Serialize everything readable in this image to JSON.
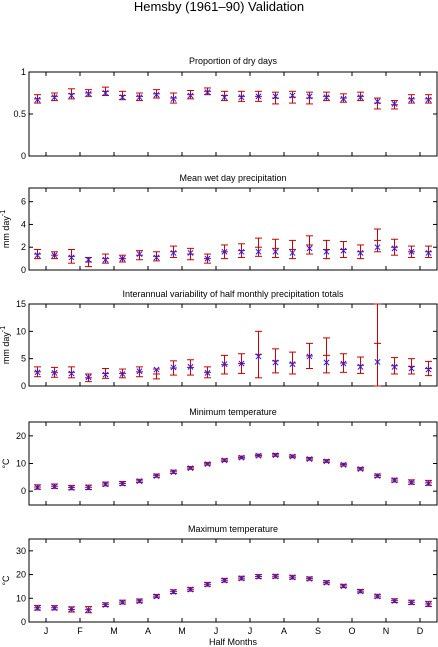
{
  "title": "Hemsby (1961–90) Validation",
  "x_axis": {
    "label": "Half Months",
    "ticks": [
      "J",
      "F",
      "M",
      "A",
      "M",
      "J",
      "J",
      "A",
      "S",
      "O",
      "N",
      "D"
    ]
  },
  "colors": {
    "observed": "#cc0000",
    "modelled": "#1a1aff",
    "axes": "#000000"
  },
  "legend": "none",
  "marker": "x",
  "chart_data": [
    {
      "type": "scatter",
      "title": "Proportion of dry days",
      "ylabel": "",
      "ylim": [
        0,
        1
      ],
      "yticks": [
        0,
        0.5,
        1
      ],
      "ytick_labels": [
        "0",
        "0.5",
        "1"
      ],
      "x": [
        1,
        2,
        3,
        4,
        5,
        6,
        7,
        8,
        9,
        10,
        11,
        12,
        13,
        14,
        15,
        16,
        17,
        18,
        19,
        20,
        21,
        22,
        23,
        24
      ],
      "observed": [
        0.68,
        0.71,
        0.74,
        0.75,
        0.77,
        0.72,
        0.71,
        0.74,
        0.69,
        0.73,
        0.77,
        0.72,
        0.71,
        0.71,
        0.69,
        0.7,
        0.69,
        0.71,
        0.69,
        0.71,
        0.63,
        0.61,
        0.68,
        0.68
      ],
      "observed_low": [
        0.63,
        0.66,
        0.68,
        0.71,
        0.72,
        0.67,
        0.66,
        0.69,
        0.63,
        0.68,
        0.73,
        0.66,
        0.65,
        0.65,
        0.62,
        0.63,
        0.62,
        0.66,
        0.64,
        0.66,
        0.56,
        0.56,
        0.63,
        0.63
      ],
      "observed_high": [
        0.73,
        0.75,
        0.8,
        0.79,
        0.82,
        0.77,
        0.75,
        0.79,
        0.75,
        0.78,
        0.81,
        0.77,
        0.77,
        0.77,
        0.76,
        0.77,
        0.76,
        0.76,
        0.74,
        0.76,
        0.69,
        0.66,
        0.73,
        0.73
      ],
      "modelled": [
        0.67,
        0.7,
        0.72,
        0.74,
        0.75,
        0.7,
        0.7,
        0.73,
        0.68,
        0.72,
        0.76,
        0.7,
        0.7,
        0.71,
        0.71,
        0.72,
        0.71,
        0.7,
        0.68,
        0.7,
        0.65,
        0.62,
        0.67,
        0.67
      ]
    },
    {
      "type": "scatter",
      "title": "Mean wet day precipitation",
      "ylabel": "mm day",
      "ylabel_superscript": "-1",
      "ylim": [
        0,
        7.2
      ],
      "yticks": [
        0,
        2,
        4,
        6
      ],
      "ytick_labels": [
        "0",
        "2",
        "4",
        "6"
      ],
      "x": [
        1,
        2,
        3,
        4,
        5,
        6,
        7,
        8,
        9,
        10,
        11,
        12,
        13,
        14,
        15,
        16,
        17,
        18,
        19,
        20,
        21,
        22,
        23,
        24
      ],
      "observed": [
        1.4,
        1.3,
        1.2,
        0.7,
        1.0,
        1.0,
        1.3,
        1.2,
        1.6,
        1.4,
        1.0,
        1.6,
        1.7,
        2.0,
        1.9,
        1.8,
        2.2,
        1.8,
        1.8,
        1.6,
        2.6,
        2.0,
        1.6,
        1.6
      ],
      "observed_low": [
        1.0,
        1.0,
        0.6,
        0.3,
        0.6,
        0.7,
        0.9,
        0.8,
        1.1,
        0.9,
        0.6,
        1.0,
        1.1,
        1.2,
        1.1,
        1.0,
        1.4,
        1.0,
        1.1,
        1.0,
        1.6,
        1.3,
        1.1,
        1.1
      ],
      "observed_high": [
        1.8,
        1.6,
        1.8,
        1.1,
        1.4,
        1.3,
        1.7,
        1.6,
        2.1,
        1.9,
        1.4,
        2.2,
        2.3,
        2.8,
        2.7,
        2.6,
        3.0,
        2.6,
        2.5,
        2.2,
        3.6,
        2.7,
        2.1,
        2.1
      ],
      "modelled": [
        1.3,
        1.3,
        1.1,
        0.9,
        0.9,
        1.0,
        1.4,
        1.1,
        1.5,
        1.5,
        1.0,
        1.6,
        1.6,
        1.6,
        1.6,
        1.5,
        1.9,
        1.6,
        1.7,
        1.5,
        2.0,
        1.9,
        1.6,
        1.5
      ]
    },
    {
      "type": "scatter",
      "title": "Interannual variability of half monthly precipitation totals",
      "ylabel": "mm day",
      "ylabel_superscript": "-1",
      "ylim": [
        0,
        15
      ],
      "yticks": [
        0,
        5,
        10,
        15
      ],
      "ytick_labels": [
        "0",
        "5",
        "10",
        "15"
      ],
      "x": [
        1,
        2,
        3,
        4,
        5,
        6,
        7,
        8,
        9,
        10,
        11,
        12,
        13,
        14,
        15,
        16,
        17,
        18,
        19,
        20,
        21,
        22,
        23,
        24
      ],
      "observed": [
        2.6,
        2.5,
        2.5,
        1.5,
        2.3,
        2.3,
        2.6,
        2.2,
        3.3,
        3.4,
        2.5,
        3.9,
        4.1,
        5.8,
        4.6,
        4.2,
        5.5,
        5.6,
        4.2,
        3.8,
        7.8,
        3.7,
        3.6,
        3.2
      ],
      "observed_low": [
        1.7,
        1.6,
        1.5,
        0.8,
        1.4,
        1.5,
        1.7,
        1.3,
        2.0,
        2.0,
        1.5,
        2.2,
        2.3,
        1.5,
        2.4,
        2.2,
        3.2,
        2.4,
        2.5,
        2.3,
        0.0,
        2.2,
        2.2,
        1.9
      ],
      "observed_high": [
        3.5,
        3.4,
        3.5,
        2.2,
        3.2,
        3.1,
        3.5,
        3.1,
        4.6,
        4.8,
        3.5,
        5.6,
        5.9,
        10.0,
        6.8,
        6.2,
        7.8,
        8.8,
        5.9,
        5.3,
        15.5,
        5.2,
        5.0,
        4.5
      ],
      "modelled": [
        2.5,
        2.4,
        2.3,
        1.6,
        2.1,
        2.2,
        2.7,
        3.0,
        3.4,
        3.5,
        2.4,
        4.0,
        4.1,
        5.4,
        4.3,
        4.0,
        5.4,
        4.3,
        4.1,
        3.5,
        4.4,
        3.5,
        3.2,
        3.0
      ]
    },
    {
      "type": "scatter",
      "title": "Minimum temperature",
      "ylabel": "°C",
      "ylim": [
        -5,
        25
      ],
      "yticks": [
        0,
        10,
        20
      ],
      "ytick_labels": [
        "0",
        "10",
        "20"
      ],
      "x": [
        1,
        2,
        3,
        4,
        5,
        6,
        7,
        8,
        9,
        10,
        11,
        12,
        13,
        14,
        15,
        16,
        17,
        18,
        19,
        20,
        21,
        22,
        23,
        24
      ],
      "observed": [
        1.5,
        1.8,
        1.3,
        1.4,
        2.6,
        2.8,
        3.7,
        5.6,
        7.0,
        8.4,
        9.9,
        11.2,
        12.2,
        12.9,
        13.1,
        12.6,
        11.7,
        10.9,
        9.6,
        8.1,
        5.6,
        4.0,
        3.3,
        3.0
      ],
      "observed_low": [
        0.7,
        1.0,
        0.5,
        0.6,
        1.9,
        2.1,
        3.1,
        5.0,
        6.4,
        7.9,
        9.4,
        10.7,
        11.7,
        12.4,
        12.6,
        12.1,
        11.2,
        10.4,
        9.1,
        7.6,
        5.0,
        3.3,
        2.5,
        2.1
      ],
      "observed_high": [
        2.3,
        2.6,
        2.1,
        2.2,
        3.3,
        3.5,
        4.3,
        6.2,
        7.6,
        8.9,
        10.4,
        11.7,
        12.7,
        13.4,
        13.6,
        13.1,
        12.2,
        11.4,
        10.1,
        8.6,
        6.2,
        4.7,
        4.1,
        3.9
      ],
      "modelled": [
        1.4,
        1.7,
        1.2,
        1.3,
        2.5,
        2.7,
        3.6,
        5.5,
        6.9,
        8.3,
        9.8,
        11.1,
        12.1,
        12.8,
        13.0,
        12.5,
        11.6,
        10.8,
        9.5,
        8.0,
        5.5,
        3.9,
        3.2,
        2.9
      ]
    },
    {
      "type": "scatter",
      "title": "Maximum temperature",
      "ylabel": "°C",
      "ylim": [
        0,
        35
      ],
      "yticks": [
        0,
        10,
        20,
        30
      ],
      "ytick_labels": [
        "0",
        "10",
        "20",
        "30"
      ],
      "x": [
        1,
        2,
        3,
        4,
        5,
        6,
        7,
        8,
        9,
        10,
        11,
        12,
        13,
        14,
        15,
        16,
        17,
        18,
        19,
        20,
        21,
        22,
        23,
        24
      ],
      "observed": [
        6.0,
        6.0,
        5.3,
        5.2,
        7.3,
        8.4,
        8.9,
        10.9,
        12.8,
        13.8,
        15.9,
        17.6,
        18.5,
        19.2,
        19.3,
        18.9,
        18.3,
        16.7,
        15.2,
        13.0,
        10.9,
        9.0,
        8.3,
        7.6
      ],
      "observed_low": [
        5.0,
        5.1,
        4.2,
        3.9,
        6.5,
        7.6,
        8.1,
        10.2,
        12.0,
        13.0,
        15.1,
        16.8,
        17.7,
        18.4,
        18.5,
        18.1,
        17.6,
        16.0,
        14.5,
        12.3,
        10.1,
        8.2,
        7.4,
        6.5
      ],
      "observed_high": [
        7.0,
        6.9,
        6.4,
        6.5,
        8.1,
        9.2,
        9.7,
        11.6,
        13.6,
        14.6,
        16.7,
        18.4,
        19.3,
        20.0,
        20.1,
        19.7,
        19.0,
        17.4,
        15.9,
        13.7,
        11.7,
        9.8,
        9.2,
        8.7
      ],
      "modelled": [
        5.9,
        5.9,
        5.4,
        5.1,
        7.2,
        8.3,
        8.8,
        10.8,
        12.7,
        13.7,
        15.8,
        17.5,
        18.4,
        19.1,
        19.2,
        18.8,
        18.2,
        16.6,
        15.1,
        12.9,
        10.8,
        8.9,
        8.2,
        7.5
      ]
    }
  ]
}
